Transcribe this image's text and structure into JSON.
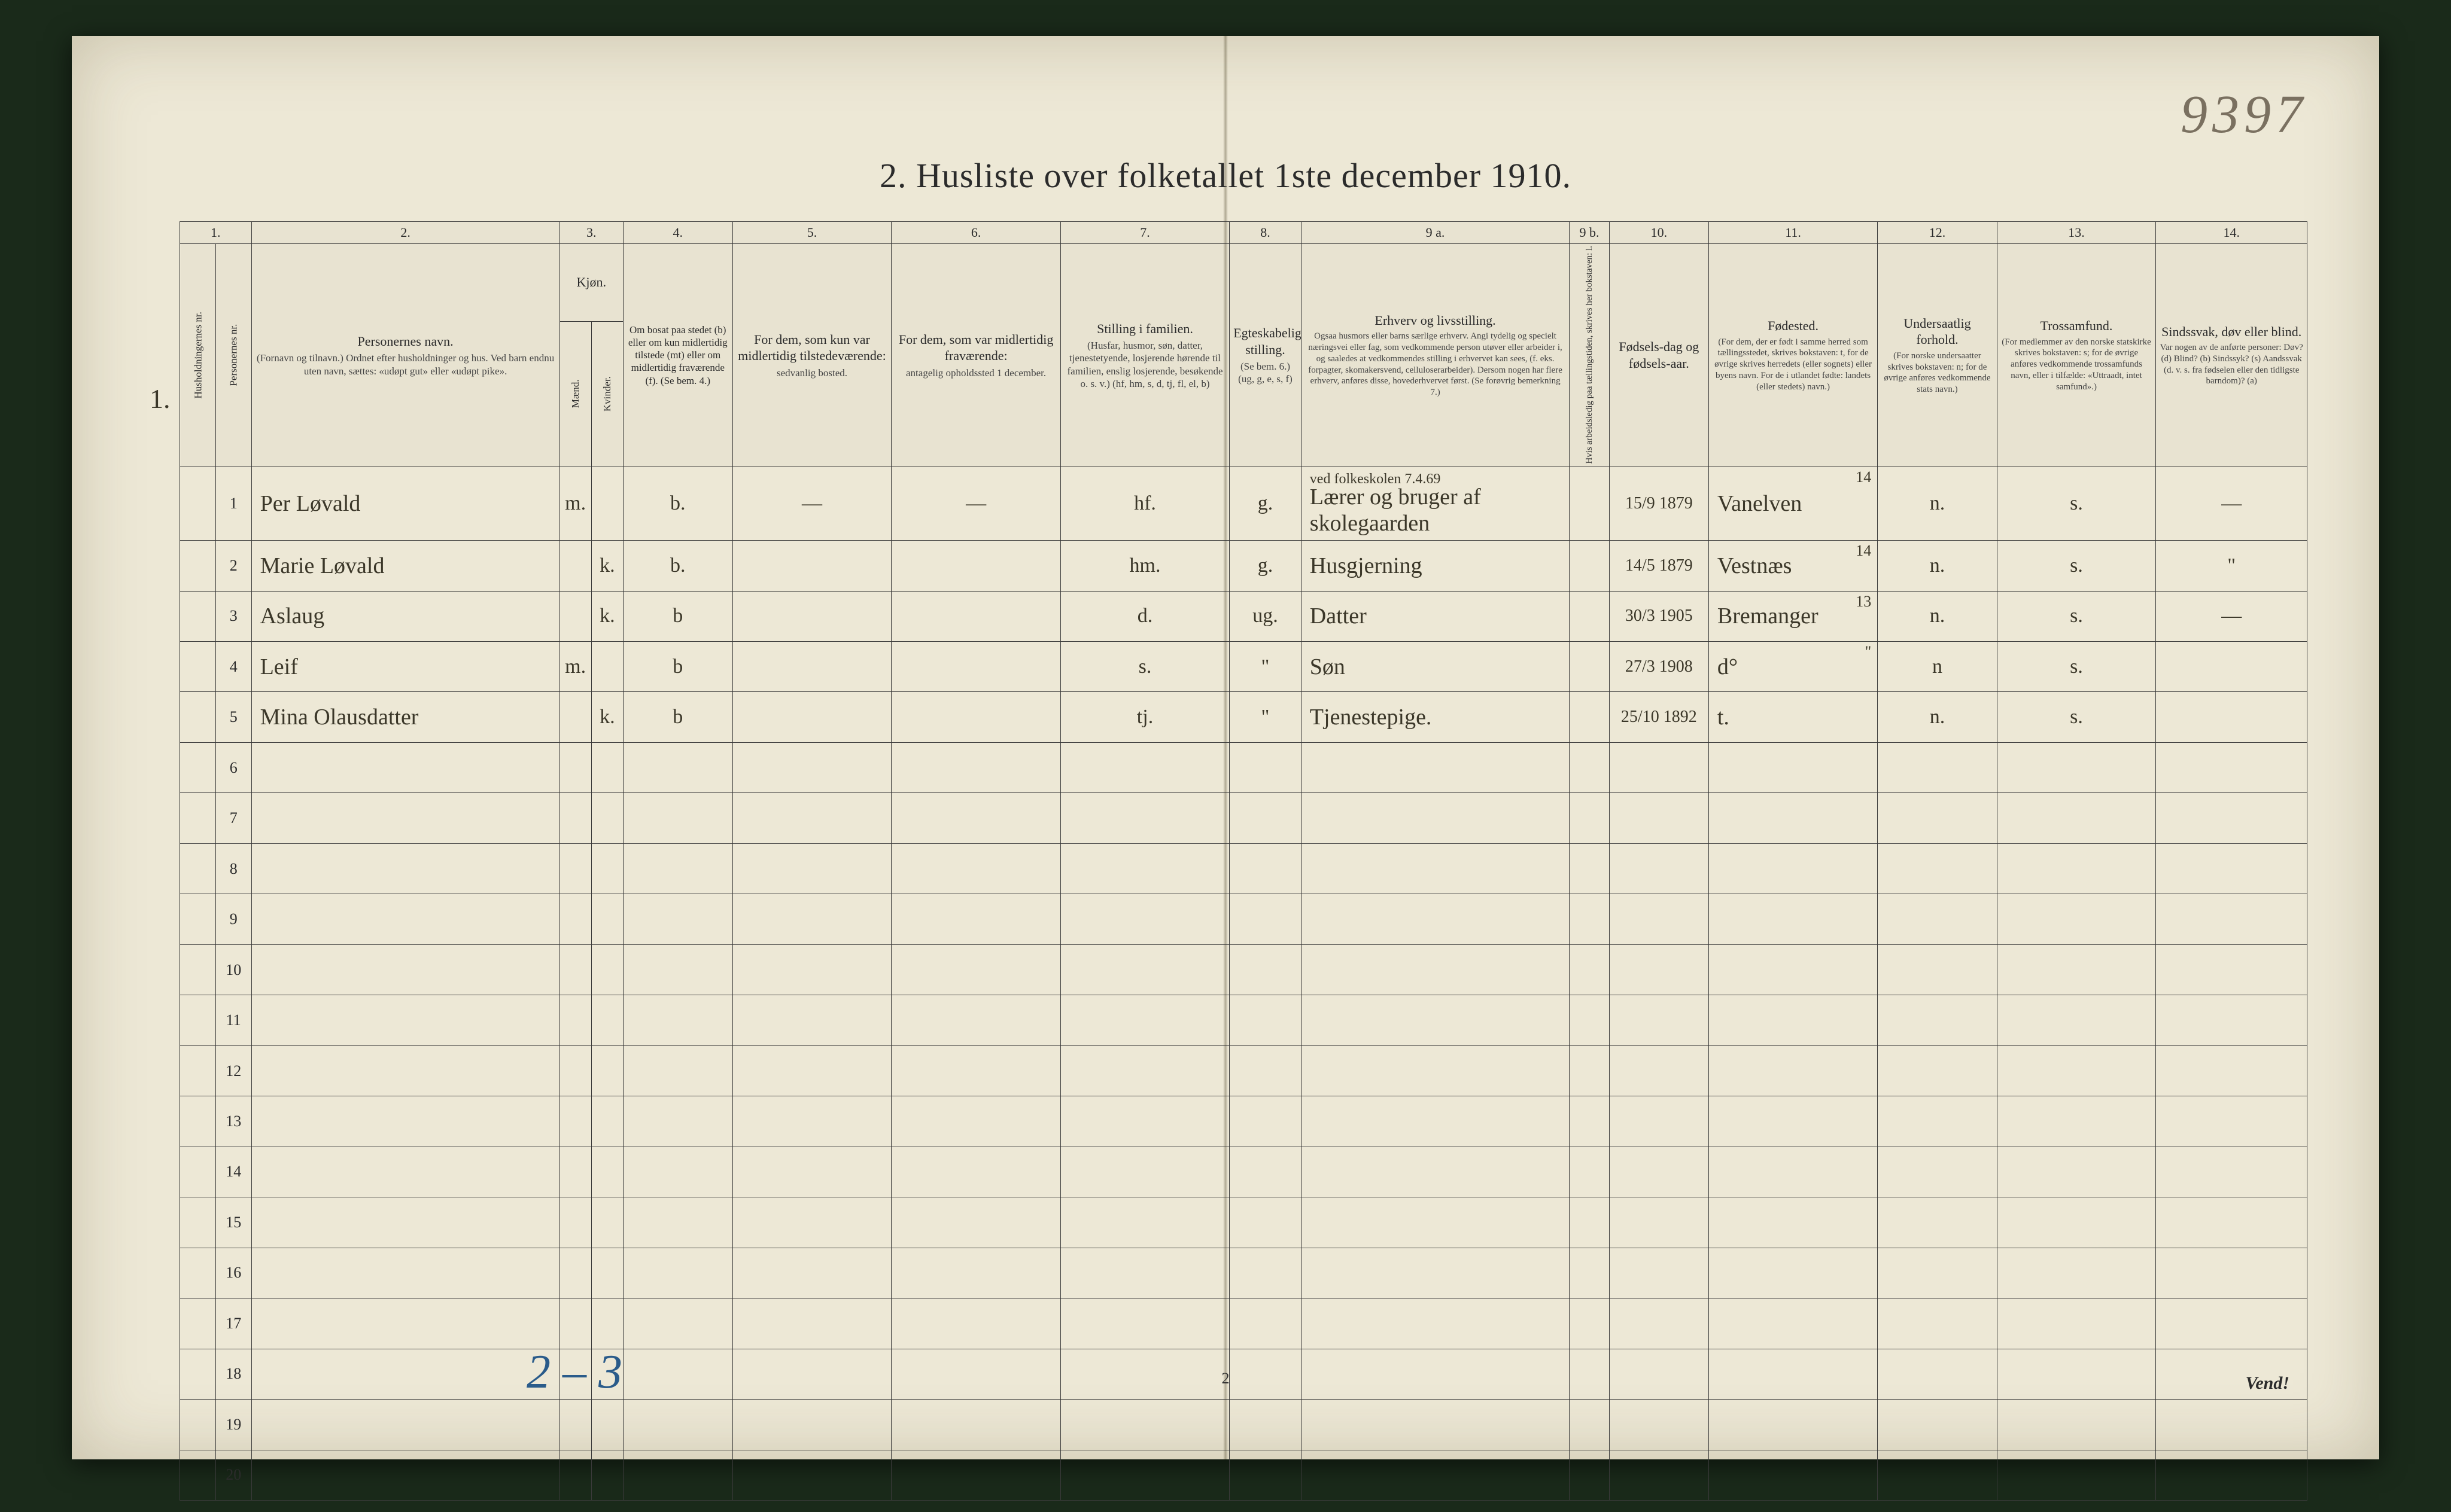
{
  "page": {
    "handwritten_page_number": "9397",
    "title": "2.  Husliste over folketallet 1ste december 1910.",
    "footer_page": "2",
    "vend": "Vend!",
    "bottom_handwritten": "2 – 3",
    "margin_household": "1.",
    "background_color": "#ede8d6",
    "ink_color": "#3b3729",
    "print_color": "#2b2b2b",
    "blue_ink": "#2a5b8a"
  },
  "columns": {
    "numbers": [
      "1.",
      "2.",
      "3.",
      "4.",
      "5.",
      "6.",
      "7.",
      "8.",
      "9 a.",
      "9 b.",
      "10.",
      "11.",
      "12.",
      "13.",
      "14."
    ],
    "group_kjon": "Kjøn.",
    "c1a": "Husholdningernes nr.",
    "c1b": "Personernes nr.",
    "c2": "Personernes navn.",
    "c2_sub": "(Fornavn og tilnavn.)\nOrdnet efter husholdninger og hus.\nVed barn endnu uten navn, sættes: «udøpt gut» eller «udøpt pike».",
    "c3a": "Mænd.",
    "c3b": "Kvinder.",
    "c3_sub": "m.  k.",
    "c4": "Om bosat paa stedet (b) eller om kun midlertidig tilstede (mt) eller om midlertidig fraværende (f). (Se bem. 4.)",
    "c5": "For dem, som kun var midlertidig tilstedeværende:",
    "c5_sub": "sedvanlig bosted.",
    "c6": "For dem, som var midlertidig fraværende:",
    "c6_sub": "antagelig opholdssted 1 december.",
    "c7": "Stilling i familien.",
    "c7_sub": "(Husfar, husmor, søn, datter, tjenestetyende, losjerende hørende til familien, enslig losjerende, besøkende o. s. v.) (hf, hm, s, d, tj, fl, el, b)",
    "c8": "Egteskabelig stilling.",
    "c8_sub": "(Se bem. 6.) (ug, g, e, s, f)",
    "c9a": "Erhverv og livsstilling.",
    "c9a_sub": "Ogsaa husmors eller barns særlige erhverv. Angi tydelig og specielt næringsvei eller fag, som vedkommende person utøver eller arbeider i, og saaledes at vedkommendes stilling i erhvervet kan sees, (f. eks. forpagter, skomakersvend, celluloserarbeider). Dersom nogen har flere erhverv, anføres disse, hovederhvervet først. (Se forøvrig bemerkning 7.)",
    "c9b": "Hvis arbeidsledig paa tællingstiden, skrives her bokstaven: l.",
    "c10": "Fødsels-dag og fødsels-aar.",
    "c11": "Fødested.",
    "c11_sub": "(For dem, der er født i samme herred som tællingsstedet, skrives bokstaven: t, for de øvrige skrives herredets (eller sognets) eller byens navn. For de i utlandet fødte: landets (eller stedets) navn.)",
    "c12": "Undersaatlig forhold.",
    "c12_sub": "(For norske undersaatter skrives bokstaven: n; for de øvrige anføres vedkommende stats navn.)",
    "c13": "Trossamfund.",
    "c13_sub": "(For medlemmer av den norske statskirke skrives bokstaven: s; for de øvrige anføres vedkommende trossamfunds navn, eller i tilfælde: «Uttraadt, intet samfund».)",
    "c14": "Sindssvak, døv eller blind.",
    "c14_sub": "Var nogen av de anførte personer: Døv? (d)  Blind? (b)  Sindssyk? (s)  Aandssvak (d. v. s. fra fødselen eller den tidligste barndom)? (a)"
  },
  "rows": [
    {
      "person_nr": "1",
      "name": "Per Løvald",
      "sex_m": "m.",
      "sex_k": "",
      "residence": "b.",
      "col5": "—",
      "col6": "—",
      "family_pos": "hf.",
      "marital": "g.",
      "occupation_top": "ved folkeskolen 7.4.69",
      "occupation": "Lærer og bruger af skolegaarden",
      "birth": "15/9 1879",
      "birthplace": "Vanelven",
      "birthplace_sup": "14",
      "nationality": "n.",
      "faith": "s.",
      "col14": "—"
    },
    {
      "person_nr": "2",
      "name": "Marie Løvald",
      "sex_m": "",
      "sex_k": "k.",
      "residence": "b.",
      "col5": "",
      "col6": "",
      "family_pos": "hm.",
      "marital": "g.",
      "occupation_top": "",
      "occupation": "Husgjerning",
      "birth": "14/5 1879",
      "birthplace": "Vestnæs",
      "birthplace_sup": "14",
      "nationality": "n.",
      "faith": "s.",
      "col14": "\""
    },
    {
      "person_nr": "3",
      "name": "Aslaug",
      "sex_m": "",
      "sex_k": "k.",
      "residence": "b",
      "col5": "",
      "col6": "",
      "family_pos": "d.",
      "marital": "ug.",
      "occupation_top": "",
      "occupation": "Datter",
      "birth": "30/3 1905",
      "birthplace": "Bremanger",
      "birthplace_sup": "13",
      "nationality": "n.",
      "faith": "s.",
      "col14": "—"
    },
    {
      "person_nr": "4",
      "name": "Leif",
      "sex_m": "m.",
      "sex_k": "",
      "residence": "b",
      "col5": "",
      "col6": "",
      "family_pos": "s.",
      "marital": "\"",
      "occupation_top": "",
      "occupation": "Søn",
      "birth": "27/3 1908",
      "birthplace": "d°",
      "birthplace_sup": "\"",
      "nationality": "n",
      "faith": "s.",
      "col14": ""
    },
    {
      "person_nr": "5",
      "name": "Mina Olausdatter",
      "sex_m": "",
      "sex_k": "k.",
      "residence": "b",
      "col5": "",
      "col6": "",
      "family_pos": "tj.",
      "marital": "\"",
      "occupation_top": "",
      "occupation": "Tjenestepige.",
      "birth": "25/10 1892",
      "birthplace": "t.",
      "birthplace_sup": "",
      "nationality": "n.",
      "faith": "s.",
      "col14": ""
    }
  ],
  "empty_row_numbers": [
    "6",
    "7",
    "8",
    "9",
    "10",
    "11",
    "12",
    "13",
    "14",
    "15",
    "16",
    "17",
    "18",
    "19",
    "20"
  ],
  "col_widths_pct": [
    1.8,
    1.8,
    15.5,
    1.6,
    1.6,
    5.5,
    8.0,
    8.5,
    8.5,
    3.6,
    13.5,
    2.0,
    5.0,
    8.5,
    6.0,
    8.0,
    7.6
  ]
}
